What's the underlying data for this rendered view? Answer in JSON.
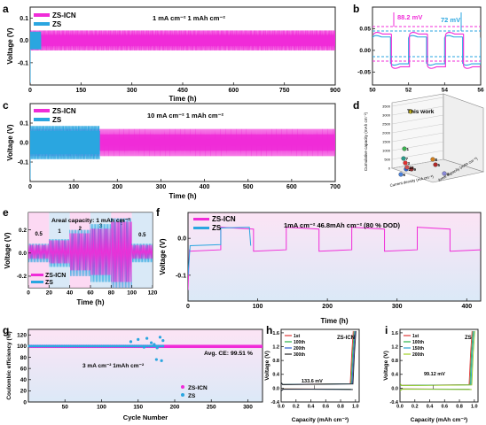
{
  "colors": {
    "zs_icn": "#f02cd8",
    "zs": "#2aa6e0",
    "axis": "#222222",
    "pink_band": "#fbd0f0",
    "blue_band": "#cfe4f5",
    "pale_top": "#fbe6f6",
    "pale_bottom": "#e2eef9"
  },
  "panels": {
    "a": "a",
    "b": "b",
    "c": "c",
    "d": "d",
    "e": "e",
    "f": "f",
    "g": "g",
    "h": "h",
    "i": "i"
  },
  "watermark": "",
  "chart_data": [
    {
      "id": "a",
      "type": "line",
      "xlabel": "Time (h)",
      "ylabel": "Voltage (V)",
      "xticks": [
        0,
        150,
        300,
        450,
        600,
        750,
        900
      ],
      "yticks": [
        -0.1,
        0.0,
        0.1
      ],
      "xlim": [
        0,
        900
      ],
      "ylim": [
        -0.2,
        0.15
      ],
      "annotation": "1 mA cm⁻² 1 mAh cm⁻²",
      "series": [
        {
          "name": "ZS-ICN",
          "x_range": [
            0,
            900
          ],
          "amplitude": 0.045
        },
        {
          "name": "ZS",
          "x_range": [
            0,
            32
          ],
          "amplitude": 0.04
        }
      ]
    },
    {
      "id": "b",
      "type": "line",
      "xlabel": "",
      "ylabel": "",
      "xticks": [
        50,
        52,
        54,
        56
      ],
      "yticks": [
        -0.05,
        0.0,
        0.05
      ],
      "xlim": [
        50,
        56
      ],
      "ylim": [
        -0.08,
        0.1
      ],
      "annotations": [
        "88.2 mV",
        "72 mV"
      ],
      "series": [
        {
          "name": "ZS-ICN",
          "amplitude": 0.044
        },
        {
          "name": "ZS",
          "amplitude": 0.036
        }
      ]
    },
    {
      "id": "c",
      "type": "line",
      "xlabel": "Time (h)",
      "ylabel": "Voltage (V)",
      "xticks": [
        0,
        100,
        200,
        300,
        400,
        500,
        600,
        700
      ],
      "yticks": [
        -0.1,
        0.0,
        0.1
      ],
      "xlim": [
        0,
        700
      ],
      "ylim": [
        -0.2,
        0.2
      ],
      "annotation": "10 mA cm⁻² 1 mAh cm⁻²",
      "series": [
        {
          "name": "ZS-ICN",
          "x_range": [
            0,
            700
          ],
          "amplitude": 0.07
        },
        {
          "name": "ZS",
          "x_range": [
            0,
            160
          ],
          "amplitude": 0.085
        }
      ]
    },
    {
      "id": "d",
      "type": "scatter",
      "zlabel": "Cumulative capacity (mAh cm⁻²)",
      "xlabel": "Current density (mA cm⁻²)",
      "ylabel": "Areal capacity (mAh cm⁻²)",
      "zticks": [
        0,
        500,
        1000,
        1500,
        2000,
        2500,
        3000,
        3500
      ],
      "label": "This work",
      "points": [
        {
          "label": "This work",
          "z": 3500
        },
        {
          "label": "1",
          "z": 1600
        },
        {
          "label": "2",
          "z": 450
        },
        {
          "label": "3",
          "z": 700
        },
        {
          "label": "4",
          "z": 200
        },
        {
          "label": "5",
          "z": 600
        },
        {
          "label": "6",
          "z": 150
        },
        {
          "label": "7",
          "z": 1000
        },
        {
          "label": "8",
          "z": 850
        },
        {
          "label": "9",
          "z": 400
        },
        {
          "label": "10",
          "z": 500
        }
      ]
    },
    {
      "id": "e",
      "type": "line",
      "xlabel": "Time (h)",
      "ylabel": "Voltage (V)",
      "xticks": [
        0,
        20,
        40,
        60,
        80,
        100,
        120
      ],
      "yticks": [
        -0.2,
        0.0,
        0.2
      ],
      "xlim": [
        0,
        120
      ],
      "ylim": [
        -0.3,
        0.35
      ],
      "annotation": "Areal capacity: 1 mAh cm⁻²",
      "segments": [
        {
          "label": "0.5",
          "x_range": [
            0,
            20
          ]
        },
        {
          "label": "1",
          "x_range": [
            20,
            40
          ]
        },
        {
          "label": "2",
          "x_range": [
            40,
            60
          ]
        },
        {
          "label": "3",
          "x_range": [
            60,
            80
          ]
        },
        {
          "label": "5",
          "x_range": [
            80,
            100
          ]
        },
        {
          "label": "0.5",
          "x_range": [
            100,
            120
          ]
        }
      ],
      "series": [
        {
          "name": "ZS-ICN"
        },
        {
          "name": "ZS"
        }
      ]
    },
    {
      "id": "f",
      "type": "line",
      "xlabel": "Time (h)",
      "ylabel": "Voltage (V)",
      "xticks": [
        0,
        100,
        200,
        300,
        400
      ],
      "yticks": [
        -0.1,
        0.0
      ],
      "xlim": [
        0,
        420
      ],
      "ylim": [
        -0.17,
        0.07
      ],
      "annotation": "1mA cm⁻² 46.8mAh cm⁻² (80 % DOD)",
      "series": [
        {
          "name": "ZS-ICN",
          "x_range": [
            0,
            420
          ]
        },
        {
          "name": "ZS",
          "x_range": [
            0,
            90
          ]
        }
      ]
    },
    {
      "id": "g",
      "type": "scatter",
      "xlabel": "Cycle Number",
      "ylabel": "Coulombic efficiency (%)",
      "xticks": [
        50,
        100,
        150,
        200,
        250,
        300
      ],
      "yticks": [
        0,
        20,
        40,
        60,
        80,
        100,
        120
      ],
      "xlim": [
        0,
        320
      ],
      "ylim": [
        0,
        130
      ],
      "annotations": [
        "3 mA cm⁻² 1mAh cm⁻²",
        "Avg. CE: 99.51 %"
      ],
      "series": [
        {
          "name": "ZS-ICN",
          "x_range": [
            1,
            320
          ],
          "value": 99.51
        },
        {
          "name": "ZS",
          "x_range": [
            1,
            185
          ],
          "value": 100,
          "outliers": [
            [
              140,
              108
            ],
            [
              150,
              112
            ],
            [
              158,
              98
            ],
            [
              162,
              114
            ],
            [
              168,
              106
            ],
            [
              172,
              103
            ],
            [
              176,
              97
            ],
            [
              180,
              116
            ],
            [
              182,
              74
            ],
            [
              175,
              76
            ],
            [
              184,
              110
            ]
          ]
        }
      ]
    },
    {
      "id": "h",
      "type": "line",
      "xlabel": "Capacity (mAh cm⁻²)",
      "ylabel": "Voltage (V)",
      "xticks": [
        0.0,
        0.2,
        0.4,
        0.6,
        0.8,
        1.0
      ],
      "yticks": [
        -0.4,
        0.0,
        0.4,
        0.8,
        1.2,
        1.6
      ],
      "xlim": [
        0,
        1.05
      ],
      "ylim": [
        -0.4,
        1.7
      ],
      "label": "ZS-ICN",
      "annotation": "133.6 mV",
      "series": [
        {
          "name": "1st"
        },
        {
          "name": "100th"
        },
        {
          "name": "200th"
        },
        {
          "name": "300th"
        }
      ]
    },
    {
      "id": "i",
      "type": "line",
      "xlabel": "Capacity (mAh cm⁻²)",
      "ylabel": "Voltage (V)",
      "xticks": [
        0.0,
        0.2,
        0.4,
        0.6,
        0.8,
        1.0
      ],
      "yticks": [
        -0.4,
        0.0,
        0.4,
        0.8,
        1.2,
        1.6
      ],
      "xlim": [
        0,
        1.05
      ],
      "ylim": [
        -0.4,
        1.7
      ],
      "label": "ZS",
      "annotation": "99.12 mV",
      "series": [
        {
          "name": "1st"
        },
        {
          "name": "100th"
        },
        {
          "name": "150th"
        },
        {
          "name": "200th"
        }
      ]
    }
  ]
}
